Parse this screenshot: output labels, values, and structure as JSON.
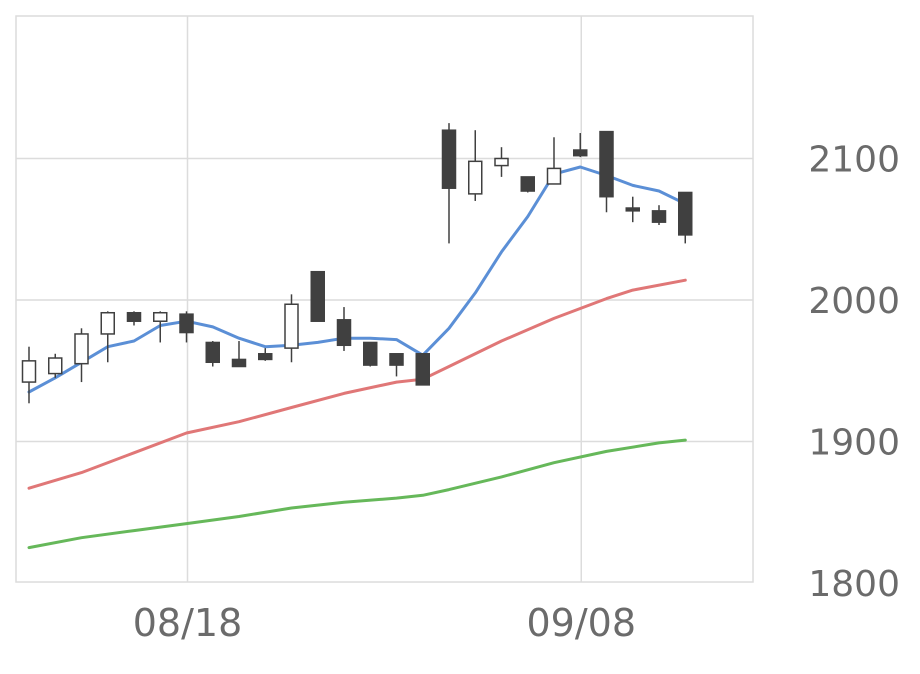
{
  "chart_data": {
    "type": "candlestick",
    "x_tick_labels": [
      "08/18",
      "09/08"
    ],
    "y_tick_labels": [
      "2100",
      "2000",
      "1900",
      "1800"
    ],
    "y_ticks": [
      2100,
      2000,
      1900,
      1800
    ],
    "ylim": [
      1800,
      2200
    ],
    "grid": true,
    "y_axis_position": "right",
    "x_tick_candle_index": [
      6,
      21
    ],
    "candles": [
      {
        "open": 1942,
        "high": 1967,
        "low": 1927,
        "close": 1957
      },
      {
        "open": 1948,
        "high": 1962,
        "low": 1945,
        "close": 1959
      },
      {
        "open": 1955,
        "high": 1980,
        "low": 1942,
        "close": 1976
      },
      {
        "open": 1976,
        "high": 1992,
        "low": 1956,
        "close": 1991
      },
      {
        "open": 1991,
        "high": 1992,
        "low": 1982,
        "close": 1985
      },
      {
        "open": 1985,
        "high": 1992,
        "low": 1970,
        "close": 1991
      },
      {
        "open": 1990,
        "high": 1992,
        "low": 1970,
        "close": 1977
      },
      {
        "open": 1970,
        "high": 1971,
        "low": 1953,
        "close": 1956
      },
      {
        "open": 1958,
        "high": 1971,
        "low": 1953,
        "close": 1953
      },
      {
        "open": 1962,
        "high": 1966,
        "low": 1957,
        "close": 1958
      },
      {
        "open": 1966,
        "high": 2004,
        "low": 1956,
        "close": 1997
      },
      {
        "open": 2020,
        "high": 2020,
        "low": 1985,
        "close": 1985
      },
      {
        "open": 1986,
        "high": 1995,
        "low": 1964,
        "close": 1968
      },
      {
        "open": 1970,
        "high": 1970,
        "low": 1953,
        "close": 1954
      },
      {
        "open": 1962,
        "high": 1962,
        "low": 1946,
        "close": 1954
      },
      {
        "open": 1962,
        "high": 1962,
        "low": 1940,
        "close": 1940
      },
      {
        "open": 2120,
        "high": 2125,
        "low": 2040,
        "close": 2079
      },
      {
        "open": 2075,
        "high": 2120,
        "low": 2070,
        "close": 2098
      },
      {
        "open": 2095,
        "high": 2108,
        "low": 2087,
        "close": 2100
      },
      {
        "open": 2087,
        "high": 2087,
        "low": 2076,
        "close": 2077
      },
      {
        "open": 2082,
        "high": 2115,
        "low": 2082,
        "close": 2093
      },
      {
        "open": 2106,
        "high": 2118,
        "low": 2101,
        "close": 2102
      },
      {
        "open": 2119,
        "high": 2119,
        "low": 2062,
        "close": 2073
      },
      {
        "open": 2065,
        "high": 2073,
        "low": 2055,
        "close": 2063
      },
      {
        "open": 2063,
        "high": 2067,
        "low": 2053,
        "close": 2055
      },
      {
        "open": 2076,
        "high": 2076,
        "low": 2040,
        "close": 2046
      }
    ],
    "series": [
      {
        "color": "#5b8fd6",
        "points": [
          [
            0,
            1935
          ],
          [
            1,
            1945
          ],
          [
            2,
            1956
          ],
          [
            3,
            1967
          ],
          [
            4,
            1971
          ],
          [
            5,
            1982
          ],
          [
            6,
            1985
          ],
          [
            7,
            1981
          ],
          [
            8,
            1973
          ],
          [
            9,
            1967
          ],
          [
            10,
            1968
          ],
          [
            11,
            1970
          ],
          [
            12,
            1973
          ],
          [
            13,
            1973
          ],
          [
            14,
            1972
          ],
          [
            15,
            1961
          ],
          [
            16,
            1980
          ],
          [
            17,
            2005
          ],
          [
            18,
            2034
          ],
          [
            19,
            2059
          ],
          [
            20,
            2089
          ],
          [
            21,
            2094
          ],
          [
            22,
            2088
          ],
          [
            23,
            2081
          ],
          [
            24,
            2077
          ],
          [
            25,
            2068
          ]
        ]
      },
      {
        "color": "#e07777",
        "points": [
          [
            0,
            1867
          ],
          [
            2,
            1878
          ],
          [
            4,
            1892
          ],
          [
            6,
            1906
          ],
          [
            8,
            1914
          ],
          [
            10,
            1924
          ],
          [
            12,
            1934
          ],
          [
            14,
            1942
          ],
          [
            15,
            1944
          ],
          [
            16,
            1953
          ],
          [
            18,
            1971
          ],
          [
            20,
            1987
          ],
          [
            22,
            2001
          ],
          [
            23,
            2007
          ],
          [
            25,
            2014
          ]
        ]
      },
      {
        "color": "#66b85a",
        "points": [
          [
            0,
            1825
          ],
          [
            2,
            1832
          ],
          [
            4,
            1837
          ],
          [
            6,
            1842
          ],
          [
            8,
            1847
          ],
          [
            10,
            1853
          ],
          [
            12,
            1857
          ],
          [
            14,
            1860
          ],
          [
            15,
            1862
          ],
          [
            16,
            1866
          ],
          [
            18,
            1875
          ],
          [
            20,
            1885
          ],
          [
            22,
            1893
          ],
          [
            24,
            1899
          ],
          [
            25,
            1901
          ]
        ]
      }
    ],
    "colors": {
      "up_fill": "#ffffff",
      "down_fill": "#404040",
      "candle_stroke": "#404040",
      "grid": "#dcdcdc",
      "frame": "#dcdcdc",
      "tick_text": "#6b6b6b"
    }
  }
}
